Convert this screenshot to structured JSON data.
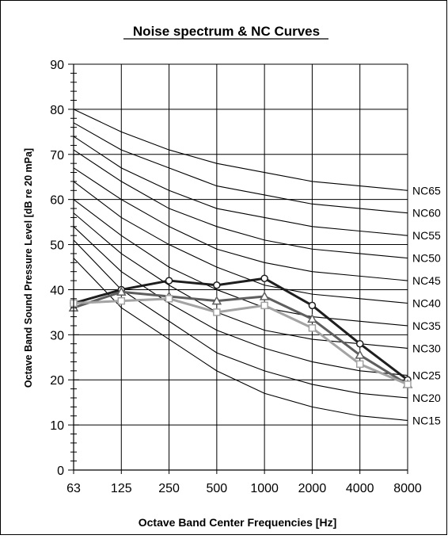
{
  "chart_data": {
    "type": "line",
    "title": "Noise spectrum & NC Curves",
    "xlabel": "Octave Band Center Frequencies [Hz]",
    "ylabel": "Octave Band Sound Pressure Level [dB re 20 mPa]",
    "categories": [
      "63",
      "125",
      "250",
      "500",
      "1000",
      "2000",
      "4000",
      "8000"
    ],
    "ylim": [
      0,
      90
    ],
    "yticks": [
      0,
      10,
      20,
      30,
      40,
      50,
      60,
      70,
      80,
      90
    ],
    "grid": true,
    "legend": "none",
    "nc_curves": [
      {
        "name": "NC15",
        "values": [
          47,
          36,
          29,
          22,
          17,
          14,
          12,
          11
        ]
      },
      {
        "name": "NC20",
        "values": [
          51,
          40,
          33,
          26,
          22,
          19,
          17,
          16
        ]
      },
      {
        "name": "NC25",
        "values": [
          54,
          44,
          37,
          31,
          27,
          24,
          22,
          21
        ]
      },
      {
        "name": "NC30",
        "values": [
          57,
          48,
          41,
          35,
          31,
          29,
          28,
          27
        ]
      },
      {
        "name": "NC35",
        "values": [
          60,
          52,
          45,
          40,
          36,
          34,
          33,
          32
        ]
      },
      {
        "name": "NC40",
        "values": [
          64,
          56,
          50,
          45,
          41,
          39,
          38,
          37
        ]
      },
      {
        "name": "NC45",
        "values": [
          67,
          60,
          54,
          49,
          46,
          44,
          43,
          42
        ]
      },
      {
        "name": "NC50",
        "values": [
          71,
          64,
          58,
          54,
          51,
          49,
          48,
          47
        ]
      },
      {
        "name": "NC55",
        "values": [
          74,
          67,
          62,
          58,
          56,
          54,
          53,
          52
        ]
      },
      {
        "name": "NC60",
        "values": [
          77,
          71,
          67,
          63,
          61,
          59,
          58,
          57
        ]
      },
      {
        "name": "NC65",
        "values": [
          80,
          75,
          71,
          68,
          66,
          64,
          63,
          62
        ]
      }
    ],
    "series": [
      {
        "values": [
          37,
          40,
          42,
          41,
          42.5,
          36.5,
          28,
          20
        ],
        "color": "#1e1e1e",
        "marker": "circle"
      },
      {
        "values": [
          36,
          39.5,
          38.5,
          37.5,
          38.5,
          33.5,
          25.5,
          19
        ],
        "color": "#5e5e5e",
        "marker": "triangle"
      },
      {
        "values": [
          37,
          37.5,
          38,
          35,
          36.5,
          31.5,
          23.5,
          19
        ],
        "color": "#a3a3a3",
        "marker": "square"
      }
    ]
  }
}
